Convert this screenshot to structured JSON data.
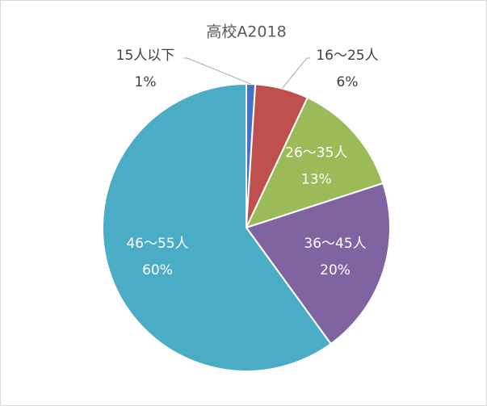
{
  "chart_data": {
    "type": "pie",
    "title": "高校A2018",
    "categories": [
      "15人以下",
      "16～25人",
      "26～35人",
      "36～45人",
      "46～55人"
    ],
    "values": [
      1,
      6,
      13,
      20,
      60
    ],
    "value_labels": [
      "1%",
      "6%",
      "13%",
      "20%",
      "60%"
    ],
    "colors": [
      "#4472c4",
      "#c0504d",
      "#9bbb59",
      "#8064a2",
      "#4bacc6"
    ]
  }
}
